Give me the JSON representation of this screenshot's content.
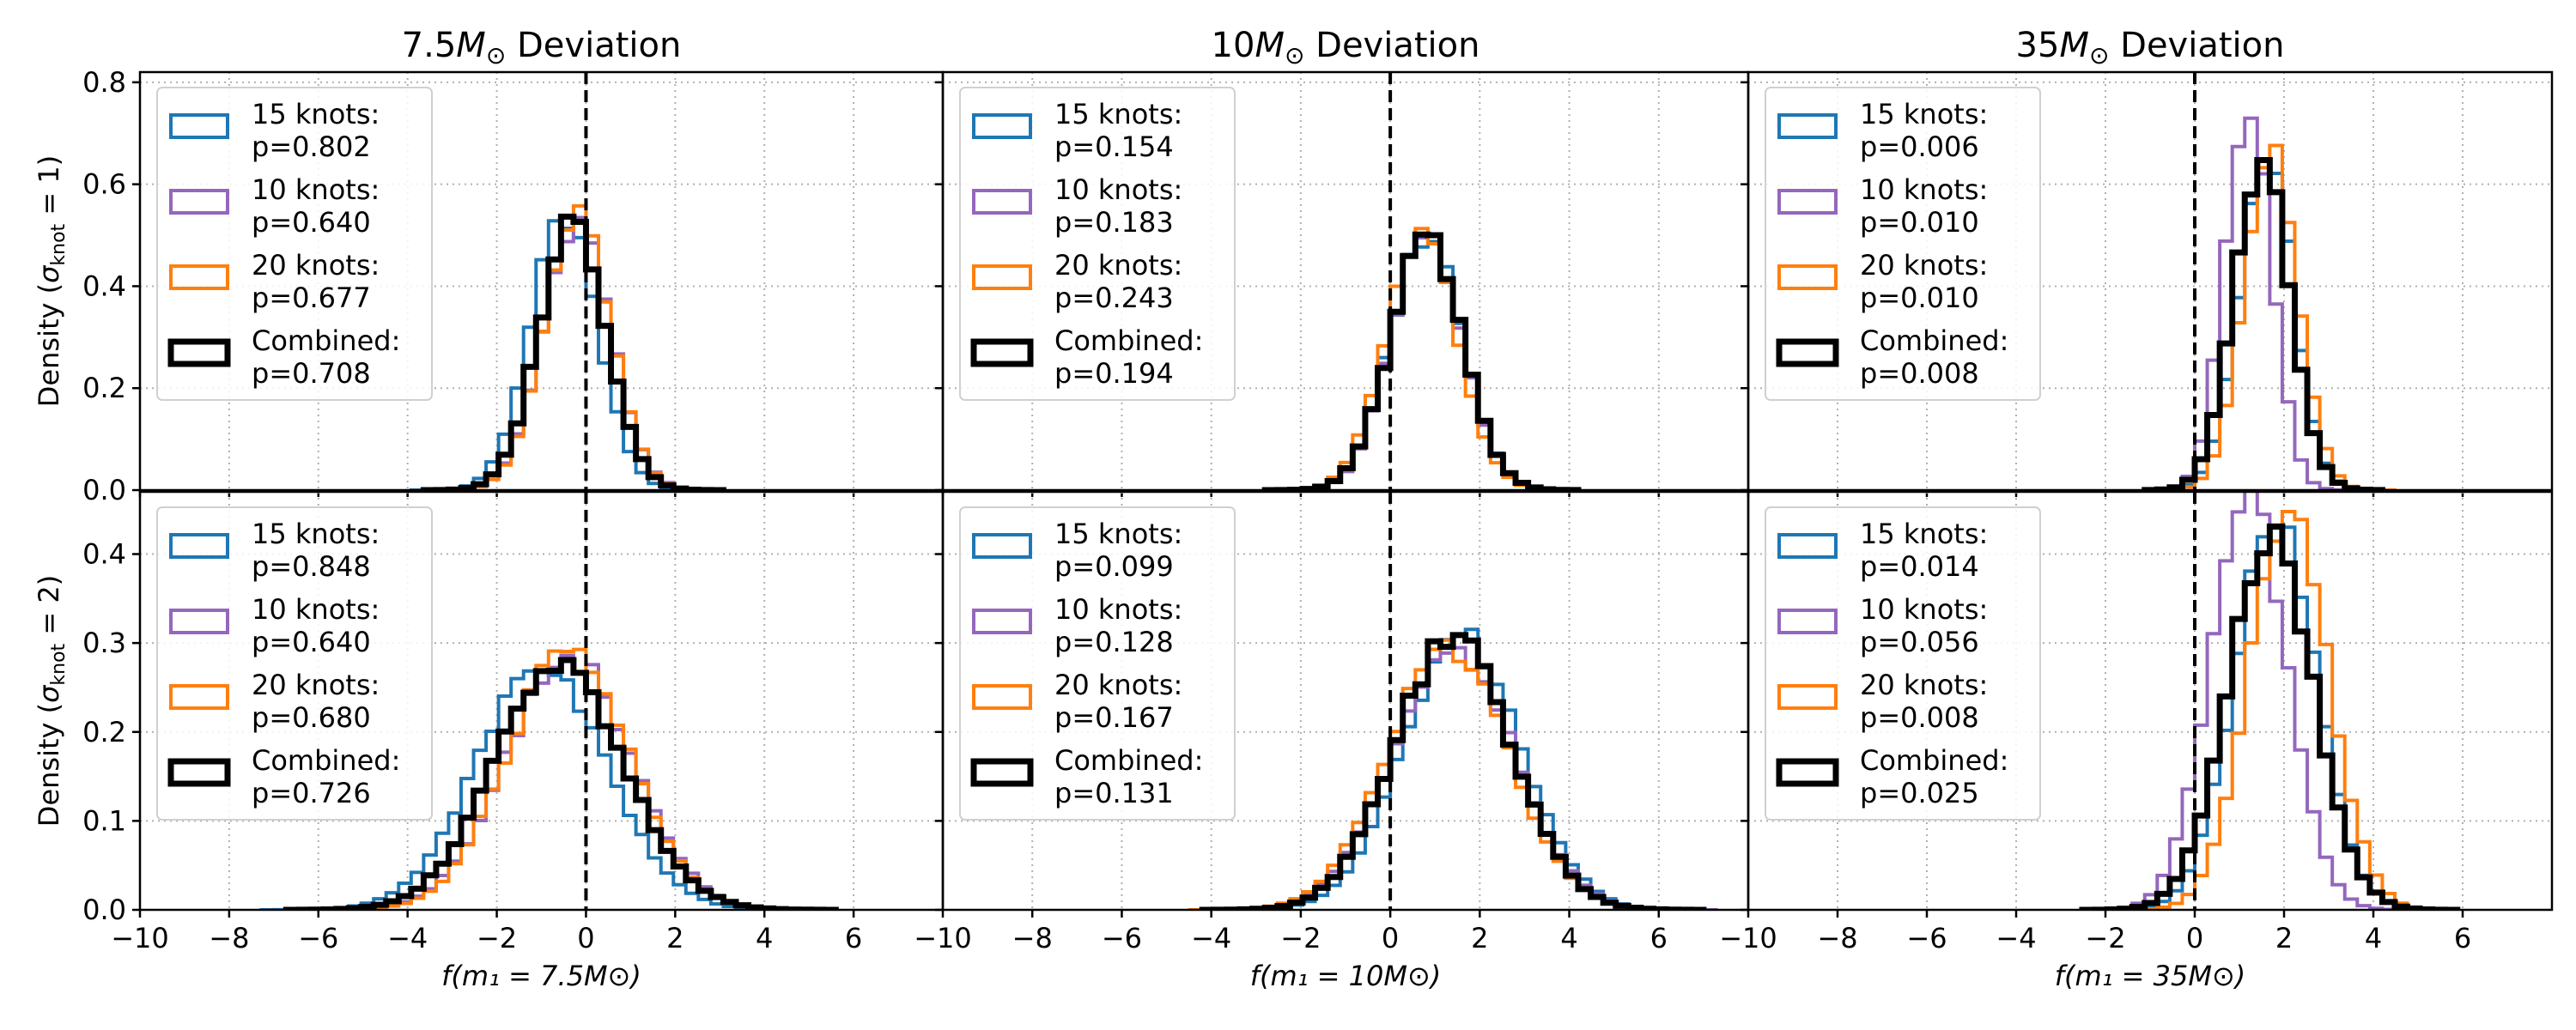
{
  "chart_data": {
    "type": "histogram-grid",
    "rows": [
      {
        "ylabel": "Density (σ_knot = 1)",
        "ylabel_main": "Density (",
        "ylabel_sigma": "σ",
        "ylabel_sub": "knot",
        "ylabel_eq": " = 1)",
        "ylim": [
          0,
          0.82
        ],
        "yticks": [
          0.0,
          0.2,
          0.4,
          0.6,
          0.8
        ],
        "ytick_labels": [
          "0.0",
          "0.2",
          "0.4",
          "0.6",
          "0.8"
        ]
      },
      {
        "ylabel": "Density (σ_knot = 2)",
        "ylabel_main": "Density (",
        "ylabel_sigma": "σ",
        "ylabel_sub": "knot",
        "ylabel_eq": " = 2)",
        "ylim": [
          0,
          0.47
        ],
        "yticks": [
          0.0,
          0.1,
          0.2,
          0.3,
          0.4
        ],
        "ytick_labels": [
          "0.0",
          "0.1",
          "0.2",
          "0.3",
          "0.4"
        ]
      }
    ],
    "columns": [
      {
        "title_pre": "7.5",
        "title_italic": "M",
        "title_sub": "⊙",
        "title_post": " Deviation",
        "xlabel_text": "f(m₁ = 7.5M⊙)"
      },
      {
        "title_pre": "10",
        "title_italic": "M",
        "title_sub": "⊙",
        "title_post": " Deviation",
        "xlabel_text": "f(m₁ = 10M⊙)"
      },
      {
        "title_pre": "35",
        "title_italic": "M",
        "title_sub": "⊙",
        "title_post": " Deviation",
        "xlabel_text": "f(m₁ = 35M⊙)"
      }
    ],
    "xlim": [
      -10,
      8
    ],
    "xticks": [
      -10,
      -8,
      -6,
      -4,
      -2,
      0,
      2,
      4,
      6
    ],
    "xtick_labels": [
      "−10",
      "−8",
      "−6",
      "−4",
      "−2",
      "0",
      "2",
      "4",
      "6"
    ],
    "vline_x": 0,
    "series_styles": [
      {
        "name": "15 knots",
        "color": "#1f77b4"
      },
      {
        "name": "10 knots",
        "color": "#9467bd"
      },
      {
        "name": "20 knots",
        "color": "#ff7f0e"
      },
      {
        "name": "Combined",
        "color": "#000000"
      }
    ],
    "panels": [
      {
        "row": 0,
        "col": 0,
        "series": [
          {
            "label": "15 knots:",
            "p": "p=0.802",
            "mean": -0.5,
            "sd": 0.75
          },
          {
            "label": "10 knots:",
            "p": "p=0.640",
            "mean": -0.2,
            "sd": 0.75
          },
          {
            "label": "20 knots:",
            "p": "p=0.677",
            "mean": -0.2,
            "sd": 0.74
          },
          {
            "label": "Combined:",
            "p": "p=0.708",
            "mean": -0.3,
            "sd": 0.75
          }
        ]
      },
      {
        "row": 0,
        "col": 1,
        "series": [
          {
            "label": "15 knots:",
            "p": "p=0.154",
            "mean": 0.8,
            "sd": 0.8
          },
          {
            "label": "10 knots:",
            "p": "p=0.183",
            "mean": 0.8,
            "sd": 0.78
          },
          {
            "label": "20 knots:",
            "p": "p=0.243",
            "mean": 0.7,
            "sd": 0.8
          },
          {
            "label": "Combined:",
            "p": "p=0.194",
            "mean": 0.8,
            "sd": 0.8
          }
        ]
      },
      {
        "row": 0,
        "col": 2,
        "series": [
          {
            "label": "15 knots:",
            "p": "p=0.006",
            "mean": 1.6,
            "sd": 0.6
          },
          {
            "label": "10 knots:",
            "p": "p=0.010",
            "mean": 1.2,
            "sd": 0.52
          },
          {
            "label": "20 knots:",
            "p": "p=0.010",
            "mean": 1.7,
            "sd": 0.6
          },
          {
            "label": "Combined:",
            "p": "p=0.008",
            "mean": 1.5,
            "sd": 0.62
          }
        ]
      },
      {
        "row": 1,
        "col": 0,
        "series": [
          {
            "label": "15 knots:",
            "p": "p=0.848",
            "mean": -1.0,
            "sd": 1.45
          },
          {
            "label": "10 knots:",
            "p": "p=0.640",
            "mean": -0.4,
            "sd": 1.4
          },
          {
            "label": "20 knots:",
            "p": "p=0.680",
            "mean": -0.4,
            "sd": 1.35
          },
          {
            "label": "Combined:",
            "p": "p=0.726",
            "mean": -0.6,
            "sd": 1.45
          }
        ]
      },
      {
        "row": 1,
        "col": 1,
        "series": [
          {
            "label": "15 knots:",
            "p": "p=0.099",
            "mean": 1.6,
            "sd": 1.3
          },
          {
            "label": "10 knots:",
            "p": "p=0.128",
            "mean": 1.4,
            "sd": 1.35
          },
          {
            "label": "20 knots:",
            "p": "p=0.167",
            "mean": 1.3,
            "sd": 1.35
          },
          {
            "label": "Combined:",
            "p": "p=0.131",
            "mean": 1.4,
            "sd": 1.3
          }
        ]
      },
      {
        "row": 1,
        "col": 2,
        "series": [
          {
            "label": "15 knots:",
            "p": "p=0.014",
            "mean": 1.8,
            "sd": 0.9
          },
          {
            "label": "10 knots:",
            "p": "p=0.056",
            "mean": 1.2,
            "sd": 0.85
          },
          {
            "label": "20 knots:",
            "p": "p=0.008",
            "mean": 2.1,
            "sd": 0.88
          },
          {
            "label": "Combined:",
            "p": "p=0.025",
            "mean": 1.7,
            "sd": 0.95
          }
        ]
      }
    ]
  }
}
